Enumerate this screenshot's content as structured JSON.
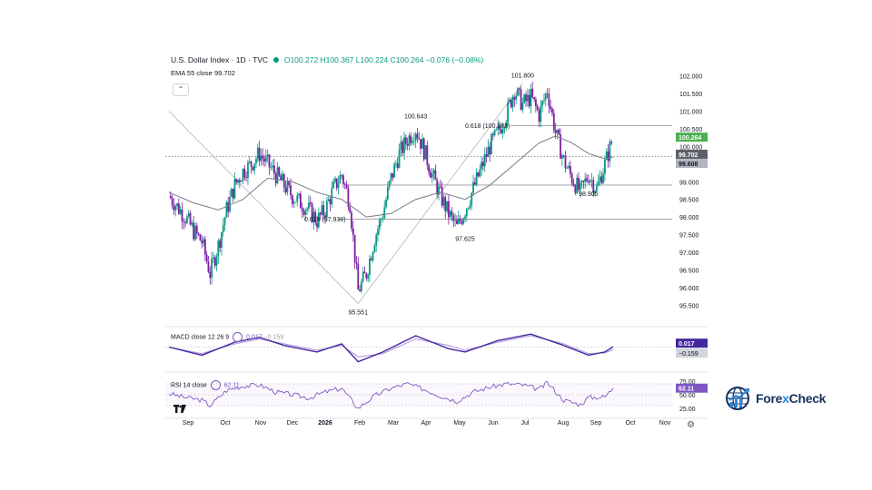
{
  "header": {
    "symbol": "U.S. Dollar Index · 1D · TVC",
    "open": "O100.272",
    "high": "H100.367",
    "low": "L100.224",
    "close": "C100.264",
    "change": "−0.076 (−0.08%)",
    "ema_label": "EMA 55 close",
    "ema_value": "99.702"
  },
  "indicators": {
    "macd_label": "MACD close 12 26 9",
    "macd_v1": "0.017",
    "macd_v2": "−0.159",
    "rsi_label": "RSI 14 close",
    "rsi_value": "62.11"
  },
  "brand": {
    "name_a": "Fore",
    "name_x": "x",
    "name_b": "Check"
  },
  "colors": {
    "up": "#089981",
    "down": "#7b1fa2",
    "ema": "#787b86",
    "macd": "#4527a0",
    "signal": "#b39ddb",
    "rsi": "#7e57c2",
    "last": "#4caf50"
  },
  "chart_data": {
    "type": "candlestick",
    "title": "U.S. Dollar Index · 1D · TVC",
    "y_ticks": [
      "102.000",
      "101.500",
      "101.000",
      "100.500",
      "100.000",
      "99.500",
      "99.000",
      "98.500",
      "98.000",
      "97.500",
      "97.000",
      "96.500",
      "96.000",
      "95.500"
    ],
    "ylim": [
      95.2,
      102.3
    ],
    "x_ticks": [
      "Sep",
      "Oct",
      "Nov",
      "Dec",
      "2026",
      "Feb",
      "Mar",
      "Apr",
      "May",
      "Jun",
      "Jul",
      "Aug",
      "Sep",
      "Oct",
      "Nov"
    ],
    "close_path": [
      [
        0,
        98.6
      ],
      [
        1,
        98.3
      ],
      [
        2,
        98.0
      ],
      [
        3,
        97.6
      ],
      [
        4,
        97.3
      ],
      [
        5,
        96.4
      ],
      [
        6,
        97.2
      ],
      [
        7,
        98.2
      ],
      [
        8,
        98.9
      ],
      [
        9,
        99.3
      ],
      [
        10,
        99.5
      ],
      [
        11,
        99.8
      ],
      [
        12,
        99.5
      ],
      [
        13,
        99.2
      ],
      [
        14,
        98.9
      ],
      [
        15,
        98.6
      ],
      [
        16,
        98.4
      ],
      [
        17,
        98.2
      ],
      [
        18,
        97.9
      ],
      [
        19,
        98.2
      ],
      [
        20,
        98.8
      ],
      [
        21,
        99.2
      ],
      [
        22,
        98.4
      ],
      [
        23,
        95.9
      ],
      [
        24,
        96.4
      ],
      [
        25,
        97.4
      ],
      [
        26,
        98.1
      ],
      [
        27,
        99.1
      ],
      [
        28,
        99.8
      ],
      [
        29,
        100.2
      ],
      [
        30,
        100.5
      ],
      [
        31,
        99.9
      ],
      [
        32,
        99.2
      ],
      [
        33,
        98.6
      ],
      [
        34,
        98.1
      ],
      [
        35,
        97.7
      ],
      [
        36,
        98.2
      ],
      [
        37,
        98.8
      ],
      [
        38,
        99.4
      ],
      [
        39,
        100.0
      ],
      [
        40,
        100.4
      ],
      [
        41,
        100.9
      ],
      [
        42,
        101.6
      ],
      [
        43,
        101.2
      ],
      [
        44,
        101.4
      ],
      [
        45,
        100.9
      ],
      [
        46,
        101.6
      ],
      [
        47,
        100.4
      ],
      [
        48,
        99.6
      ],
      [
        49,
        99.1
      ],
      [
        50,
        98.7
      ],
      [
        51,
        99.2
      ],
      [
        52,
        98.8
      ],
      [
        53,
        99.5
      ],
      [
        54,
        100.26
      ]
    ],
    "ema_path": [
      [
        0,
        98.7
      ],
      [
        3,
        98.4
      ],
      [
        6,
        98.2
      ],
      [
        9,
        98.5
      ],
      [
        12,
        99.1
      ],
      [
        15,
        99.0
      ],
      [
        18,
        98.7
      ],
      [
        21,
        98.5
      ],
      [
        24,
        98.0
      ],
      [
        27,
        98.1
      ],
      [
        30,
        98.5
      ],
      [
        33,
        98.7
      ],
      [
        36,
        98.5
      ],
      [
        39,
        98.9
      ],
      [
        42,
        99.5
      ],
      [
        45,
        100.1
      ],
      [
        47,
        100.3
      ],
      [
        49,
        100.1
      ],
      [
        51,
        99.8
      ],
      [
        53,
        99.65
      ],
      [
        54,
        99.702
      ]
    ],
    "annotations": [
      {
        "text": "101.800",
        "x": 43,
        "y": 101.8,
        "pos": "above"
      },
      {
        "text": "100.643",
        "x": 30,
        "y": 100.643,
        "pos": "above"
      },
      {
        "text": "97.625",
        "x": 36,
        "y": 97.625,
        "pos": "below"
      },
      {
        "text": "95.551",
        "x": 23,
        "y": 95.551,
        "pos": "below"
      },
      {
        "text": "98.905",
        "x": 51,
        "y": 98.905,
        "pos": "below"
      }
    ],
    "fib_labels": [
      {
        "text": "0.618 (100.588)",
        "y": 100.588
      },
      {
        "text": "0.618 (97.938)",
        "y": 97.938
      }
    ],
    "hlines": [
      100.588,
      98.905,
      97.938
    ],
    "price_tags": [
      {
        "text": "100.264",
        "y": 100.264,
        "bg": "#4caf50",
        "fg": "#ffffff"
      },
      {
        "text": "99.702",
        "y": 99.78,
        "bg": "#5d6068",
        "fg": "#ffffff"
      },
      {
        "text": "99.608",
        "y": 99.52,
        "bg": "#b2b5be",
        "fg": "#131722"
      }
    ],
    "macd": {
      "ticks": [],
      "macd_path": [
        [
          0,
          0.0
        ],
        [
          4,
          -0.5
        ],
        [
          8,
          0.3
        ],
        [
          11,
          0.6
        ],
        [
          14,
          0.1
        ],
        [
          18,
          -0.3
        ],
        [
          21,
          0.2
        ],
        [
          23,
          -0.9
        ],
        [
          26,
          -0.3
        ],
        [
          30,
          0.7
        ],
        [
          34,
          -0.1
        ],
        [
          36,
          -0.3
        ],
        [
          40,
          0.4
        ],
        [
          44,
          0.8
        ],
        [
          48,
          0.1
        ],
        [
          51,
          -0.5
        ],
        [
          53,
          -0.3
        ],
        [
          54,
          0.017
        ]
      ],
      "signal_path": [
        [
          0,
          0.0
        ],
        [
          4,
          -0.4
        ],
        [
          8,
          0.2
        ],
        [
          11,
          0.5
        ],
        [
          14,
          0.2
        ],
        [
          18,
          -0.2
        ],
        [
          21,
          0.1
        ],
        [
          23,
          -0.6
        ],
        [
          26,
          -0.4
        ],
        [
          30,
          0.5
        ],
        [
          34,
          0.1
        ],
        [
          36,
          -0.2
        ],
        [
          40,
          0.3
        ],
        [
          44,
          0.7
        ],
        [
          48,
          0.2
        ],
        [
          51,
          -0.4
        ],
        [
          53,
          -0.35
        ],
        [
          54,
          -0.159
        ]
      ],
      "ylim": [
        -1.2,
        1.2
      ]
    },
    "rsi": {
      "ticks": [
        "75.00",
        "50.00",
        "25.00"
      ],
      "rsi_path": [
        [
          0,
          52
        ],
        [
          2,
          45
        ],
        [
          4,
          40
        ],
        [
          5,
          30
        ],
        [
          7,
          58
        ],
        [
          9,
          66
        ],
        [
          11,
          68
        ],
        [
          13,
          55
        ],
        [
          15,
          50
        ],
        [
          17,
          44
        ],
        [
          19,
          55
        ],
        [
          21,
          62
        ],
        [
          23,
          25
        ],
        [
          25,
          48
        ],
        [
          27,
          62
        ],
        [
          29,
          70
        ],
        [
          31,
          60
        ],
        [
          33,
          48
        ],
        [
          35,
          38
        ],
        [
          37,
          55
        ],
        [
          39,
          64
        ],
        [
          41,
          70
        ],
        [
          43,
          68
        ],
        [
          45,
          60
        ],
        [
          46,
          72
        ],
        [
          48,
          40
        ],
        [
          50,
          32
        ],
        [
          51,
          45
        ],
        [
          53,
          46
        ],
        [
          54,
          62.11
        ]
      ],
      "ylim": [
        15,
        85
      ]
    }
  }
}
